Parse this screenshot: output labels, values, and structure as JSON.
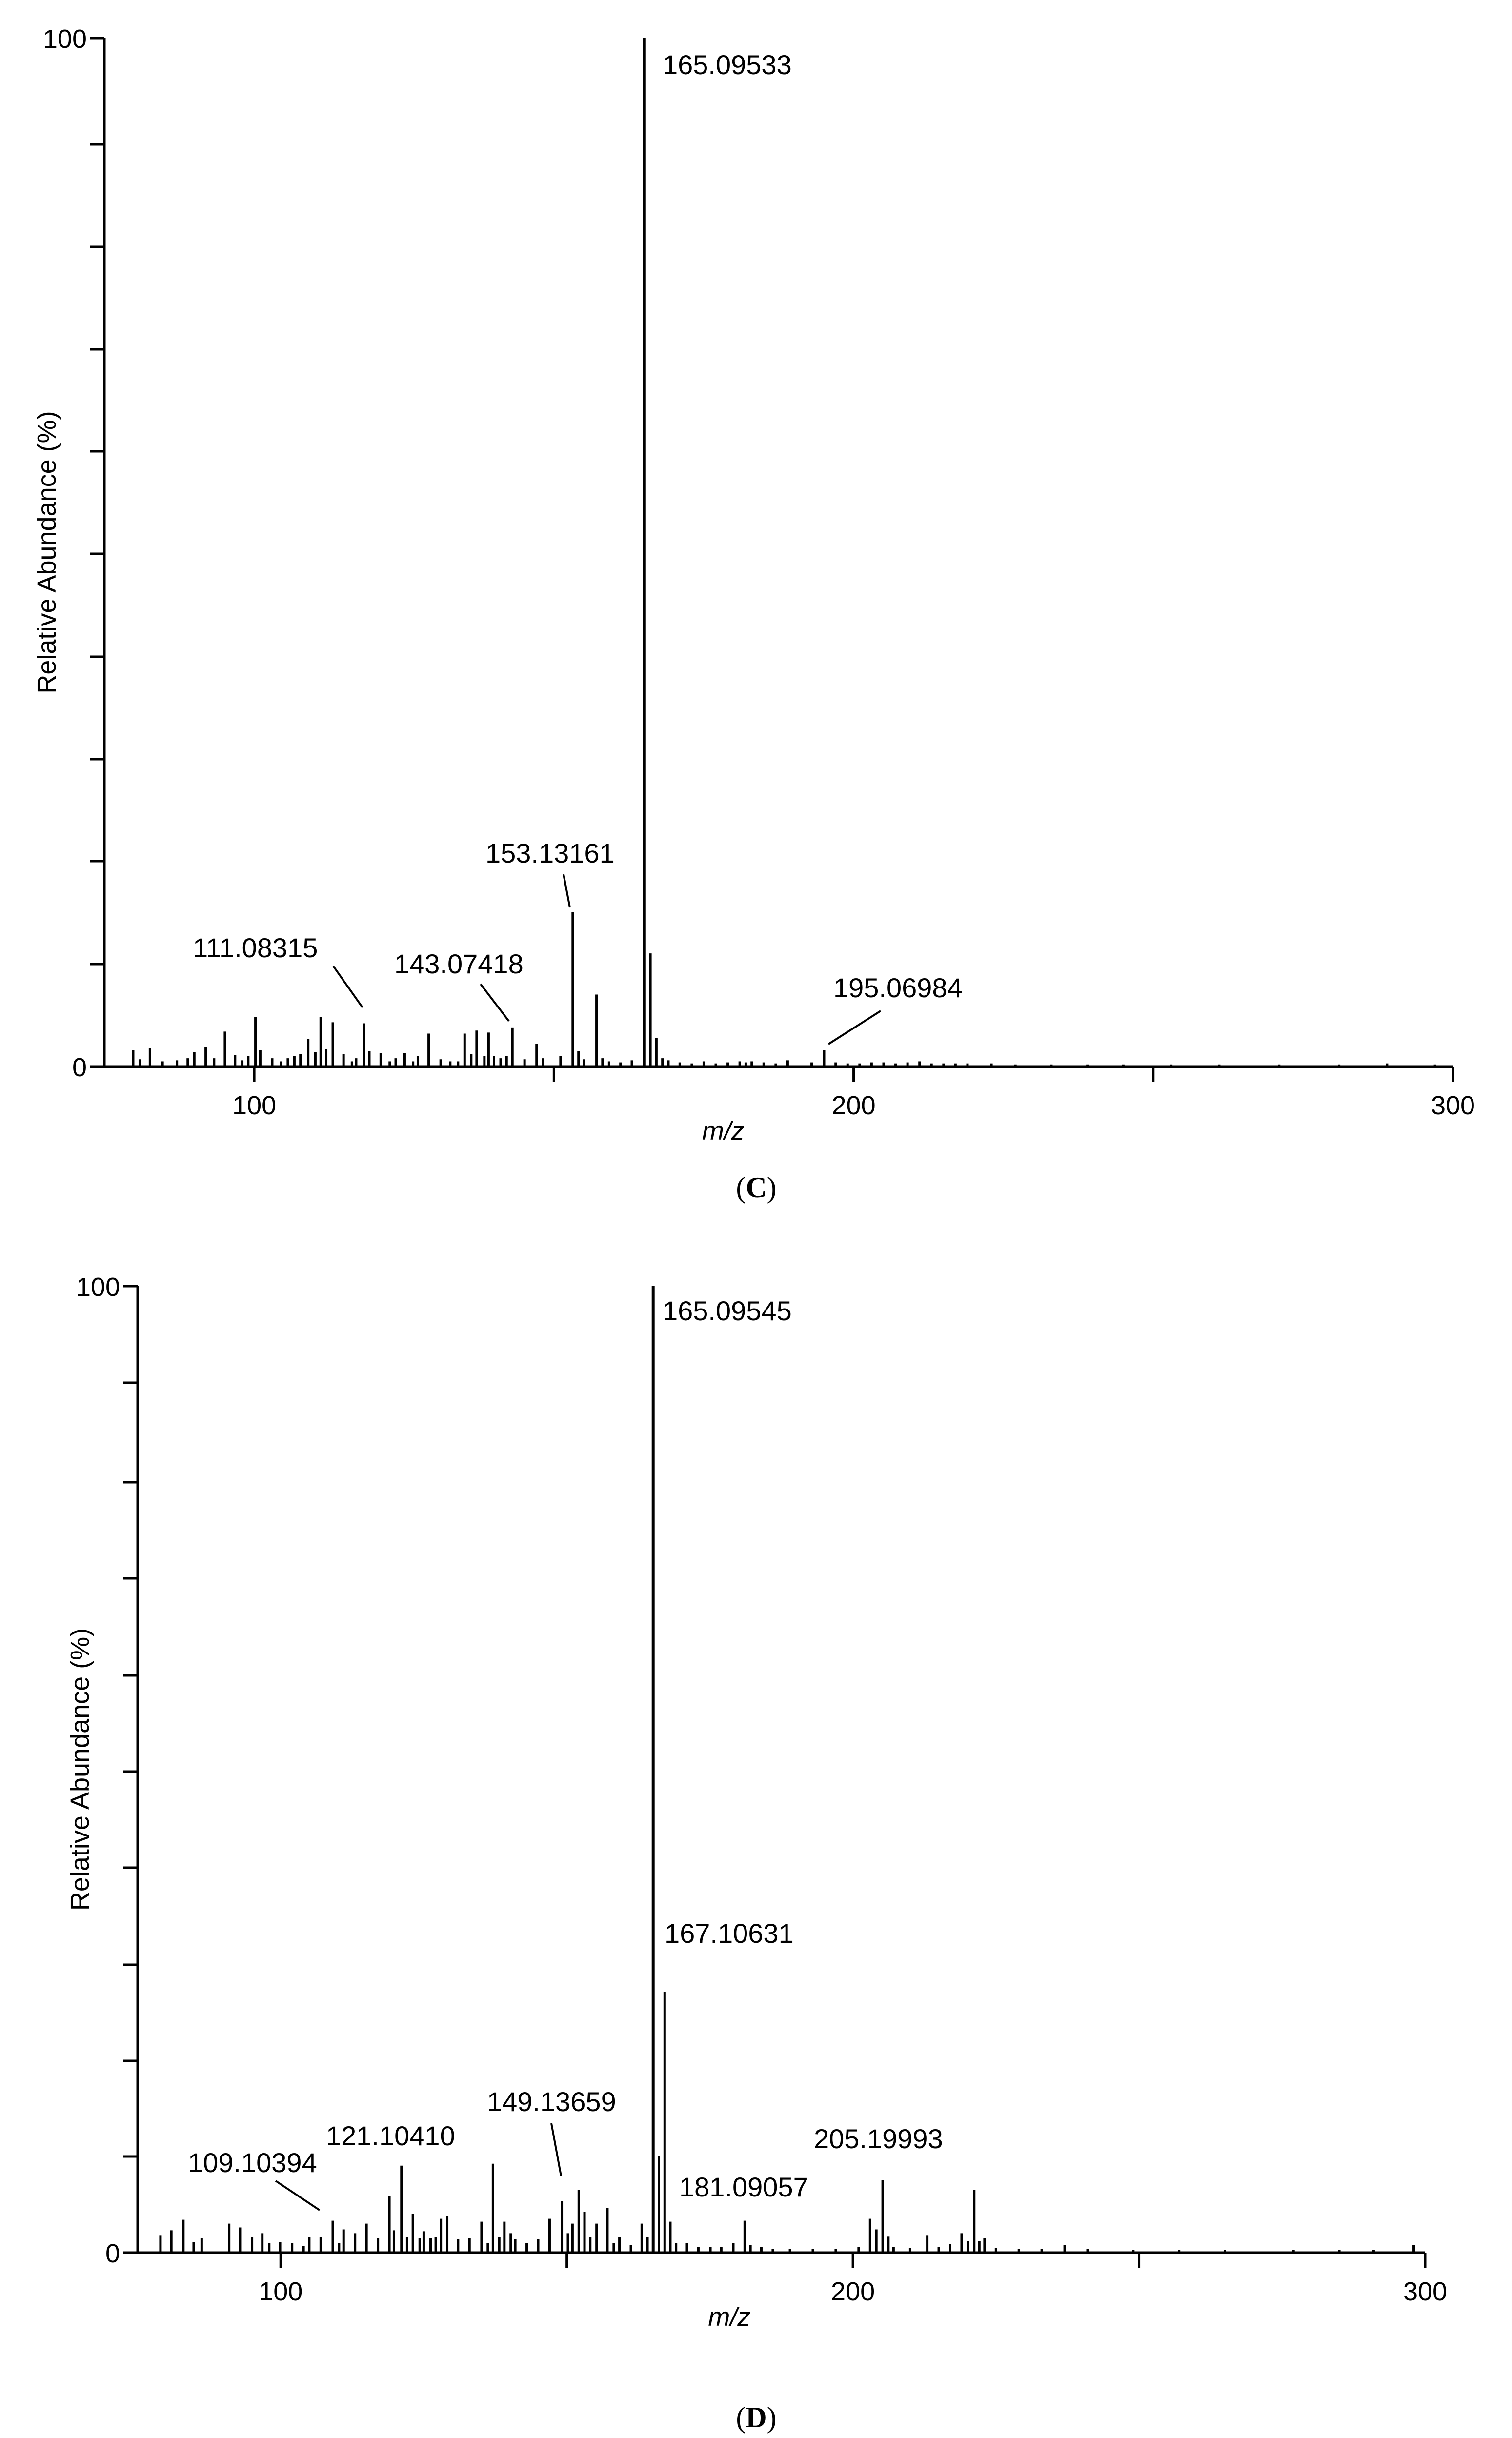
{
  "chart_data": [
    {
      "type": "bar",
      "panel": "C",
      "caption": {
        "open": "(",
        "letter": "C",
        "close": ")"
      },
      "xlabel": "m/z",
      "ylabel": "Relative Abundance (%)",
      "xlim": [
        75,
        300
      ],
      "ylim": [
        0,
        100
      ],
      "x_ticks": [
        100,
        200,
        300
      ],
      "y_ticks": [
        0,
        100
      ],
      "labels": [
        {
          "text": "165.09533",
          "mz": 165.09533
        },
        {
          "text": "153.13161",
          "mz": 153.13161
        },
        {
          "text": "111.08315",
          "mz": 111.08315
        },
        {
          "text": "143.07418",
          "mz": 143.07418
        },
        {
          "text": "195.06984",
          "mz": 195.06984
        }
      ],
      "peaks": [
        [
          79.8,
          1.6
        ],
        [
          80.9,
          0.7
        ],
        [
          82.6,
          1.8
        ],
        [
          84.7,
          0.5
        ],
        [
          87.1,
          0.6
        ],
        [
          88.9,
          0.8
        ],
        [
          90.0,
          1.4
        ],
        [
          91.9,
          1.9
        ],
        [
          93.3,
          0.8
        ],
        [
          95.1,
          3.4
        ],
        [
          96.8,
          1.1
        ],
        [
          98.0,
          0.6
        ],
        [
          99.0,
          1.0
        ],
        [
          100.2,
          4.8
        ],
        [
          101.0,
          1.6
        ],
        [
          103.0,
          0.8
        ],
        [
          104.5,
          0.5
        ],
        [
          105.6,
          0.8
        ],
        [
          106.7,
          1.0
        ],
        [
          107.7,
          1.2
        ],
        [
          109.0,
          2.7
        ],
        [
          110.2,
          1.4
        ],
        [
          111.08315,
          4.8
        ],
        [
          112.0,
          1.7
        ],
        [
          113.1,
          4.3
        ],
        [
          114.9,
          1.2
        ],
        [
          116.3,
          0.5
        ],
        [
          117.0,
          0.8
        ],
        [
          118.3,
          4.2
        ],
        [
          119.2,
          1.5
        ],
        [
          121.1,
          1.3
        ],
        [
          122.6,
          0.5
        ],
        [
          123.6,
          0.8
        ],
        [
          125.1,
          1.3
        ],
        [
          126.5,
          0.5
        ],
        [
          127.3,
          1.0
        ],
        [
          129.1,
          3.2
        ],
        [
          131.1,
          0.7
        ],
        [
          132.7,
          0.5
        ],
        [
          134.0,
          0.5
        ],
        [
          135.1,
          3.2
        ],
        [
          136.2,
          1.2
        ],
        [
          137.1,
          3.5
        ],
        [
          138.4,
          1.0
        ],
        [
          139.1,
          3.3
        ],
        [
          140.0,
          1.0
        ],
        [
          141.1,
          0.8
        ],
        [
          142.1,
          1.0
        ],
        [
          143.07418,
          3.8
        ],
        [
          145.1,
          0.7
        ],
        [
          147.1,
          2.2
        ],
        [
          148.2,
          0.8
        ],
        [
          151.1,
          1.0
        ],
        [
          153.13161,
          15.0
        ],
        [
          154.1,
          1.5
        ],
        [
          155.0,
          0.7
        ],
        [
          157.1,
          7.0
        ],
        [
          158.1,
          0.8
        ],
        [
          159.2,
          0.5
        ],
        [
          161.1,
          0.4
        ],
        [
          163.0,
          0.6
        ],
        [
          165.09533,
          100.0
        ],
        [
          166.1,
          11.0
        ],
        [
          167.1,
          2.8
        ],
        [
          168.1,
          0.8
        ],
        [
          169.1,
          0.6
        ],
        [
          171.0,
          0.4
        ],
        [
          173.0,
          0.3
        ],
        [
          175.0,
          0.5
        ],
        [
          177.0,
          0.3
        ],
        [
          179.0,
          0.4
        ],
        [
          181.0,
          0.5
        ],
        [
          182.0,
          0.4
        ],
        [
          183.0,
          0.5
        ],
        [
          185.0,
          0.4
        ],
        [
          187.0,
          0.3
        ],
        [
          189.0,
          0.6
        ],
        [
          193.0,
          0.4
        ],
        [
          195.06984,
          1.6
        ],
        [
          197.0,
          0.4
        ],
        [
          199.0,
          0.3
        ],
        [
          201.0,
          0.3
        ],
        [
          203.0,
          0.4
        ],
        [
          205.0,
          0.4
        ],
        [
          207.0,
          0.3
        ],
        [
          209.0,
          0.4
        ],
        [
          211.0,
          0.5
        ],
        [
          213.0,
          0.3
        ],
        [
          215.0,
          0.3
        ],
        [
          217.0,
          0.3
        ],
        [
          219.0,
          0.3
        ],
        [
          223.0,
          0.3
        ],
        [
          227.0,
          0.2
        ],
        [
          233.0,
          0.2
        ],
        [
          239.0,
          0.2
        ],
        [
          245.0,
          0.2
        ],
        [
          253.0,
          0.2
        ],
        [
          261.0,
          0.2
        ],
        [
          271.0,
          0.2
        ],
        [
          281.0,
          0.2
        ],
        [
          289.0,
          0.3
        ],
        [
          297.0,
          0.2
        ]
      ]
    },
    {
      "type": "bar",
      "panel": "D",
      "caption": {
        "open": "(",
        "letter": "D",
        "close": ")"
      },
      "xlabel": "m/z",
      "ylabel": "Relative Abundance (%)",
      "xlim": [
        75,
        300
      ],
      "ylim": [
        0,
        100
      ],
      "x_ticks": [
        100,
        200,
        300
      ],
      "y_ticks": [
        0,
        100
      ],
      "labels": [
        {
          "text": "165.09545",
          "mz": 165.09545
        },
        {
          "text": "167.10631",
          "mz": 167.10631
        },
        {
          "text": "149.13659",
          "mz": 149.13659
        },
        {
          "text": "121.10410",
          "mz": 121.1041
        },
        {
          "text": "109.10394",
          "mz": 109.10394
        },
        {
          "text": "181.09057",
          "mz": 181.09057
        },
        {
          "text": "205.19993",
          "mz": 205.19993
        }
      ],
      "peaks": [
        [
          79.0,
          1.8
        ],
        [
          80.9,
          2.3
        ],
        [
          83.0,
          3.4
        ],
        [
          84.8,
          1.1
        ],
        [
          86.2,
          1.5
        ],
        [
          91.0,
          3.0
        ],
        [
          92.9,
          2.6
        ],
        [
          95.0,
          1.6
        ],
        [
          96.8,
          2.0
        ],
        [
          98.0,
          1.0
        ],
        [
          99.9,
          1.1
        ],
        [
          102.0,
          1.0
        ],
        [
          104.0,
          0.7
        ],
        [
          105.0,
          1.6
        ],
        [
          107.0,
          1.6
        ],
        [
          109.10394,
          3.3
        ],
        [
          110.2,
          1.0
        ],
        [
          111.0,
          2.4
        ],
        [
          113.0,
          2.0
        ],
        [
          115.0,
          3.0
        ],
        [
          117.0,
          1.5
        ],
        [
          119.0,
          5.9
        ],
        [
          119.8,
          2.3
        ],
        [
          121.1041,
          9.0
        ],
        [
          122.1,
          1.6
        ],
        [
          123.1,
          4.0
        ],
        [
          124.3,
          1.5
        ],
        [
          125.0,
          2.2
        ],
        [
          126.2,
          1.5
        ],
        [
          127.1,
          1.6
        ],
        [
          128.0,
          3.5
        ],
        [
          129.1,
          3.8
        ],
        [
          131.0,
          1.4
        ],
        [
          133.0,
          1.5
        ],
        [
          135.1,
          3.2
        ],
        [
          136.2,
          1.0
        ],
        [
          137.1,
          9.2
        ],
        [
          138.2,
          1.6
        ],
        [
          139.1,
          3.2
        ],
        [
          140.2,
          2.0
        ],
        [
          141.0,
          1.4
        ],
        [
          143.0,
          1.0
        ],
        [
          145.0,
          1.4
        ],
        [
          147.0,
          3.5
        ],
        [
          149.13659,
          5.3
        ],
        [
          150.2,
          2.0
        ],
        [
          151.0,
          3.0
        ],
        [
          152.1,
          6.5
        ],
        [
          153.1,
          4.2
        ],
        [
          154.1,
          1.6
        ],
        [
          155.2,
          3.0
        ],
        [
          157.1,
          4.6
        ],
        [
          158.2,
          1.0
        ],
        [
          159.2,
          1.6
        ],
        [
          161.2,
          0.8
        ],
        [
          163.1,
          3.0
        ],
        [
          164.1,
          1.6
        ],
        [
          165.09545,
          100.0
        ],
        [
          166.1,
          10.0
        ],
        [
          167.10631,
          27.0
        ],
        [
          168.1,
          3.2
        ],
        [
          169.1,
          1.0
        ],
        [
          171.0,
          1.0
        ],
        [
          173.0,
          0.6
        ],
        [
          175.1,
          0.6
        ],
        [
          177.0,
          0.6
        ],
        [
          179.1,
          1.0
        ],
        [
          181.09057,
          3.3
        ],
        [
          182.1,
          0.8
        ],
        [
          184.0,
          0.6
        ],
        [
          186.0,
          0.4
        ],
        [
          189.0,
          0.4
        ],
        [
          193.0,
          0.4
        ],
        [
          197.0,
          0.4
        ],
        [
          201.0,
          0.6
        ],
        [
          203.0,
          3.5
        ],
        [
          204.1,
          2.4
        ],
        [
          205.19993,
          7.5
        ],
        [
          206.2,
          1.7
        ],
        [
          207.1,
          0.6
        ],
        [
          210.0,
          0.5
        ],
        [
          213.0,
          1.8
        ],
        [
          215.0,
          0.6
        ],
        [
          217.0,
          0.9
        ],
        [
          219.0,
          2.0
        ],
        [
          220.1,
          1.2
        ],
        [
          221.2,
          6.5
        ],
        [
          222.1,
          1.2
        ],
        [
          223.0,
          1.5
        ],
        [
          225.0,
          0.5
        ],
        [
          229.0,
          0.4
        ],
        [
          233.0,
          0.4
        ],
        [
          237.0,
          0.8
        ],
        [
          241.0,
          0.4
        ],
        [
          249.0,
          0.3
        ],
        [
          257.0,
          0.3
        ],
        [
          265.0,
          0.3
        ],
        [
          277.0,
          0.3
        ],
        [
          285.0,
          0.3
        ],
        [
          291.0,
          0.3
        ],
        [
          298.0,
          0.8
        ]
      ]
    }
  ]
}
